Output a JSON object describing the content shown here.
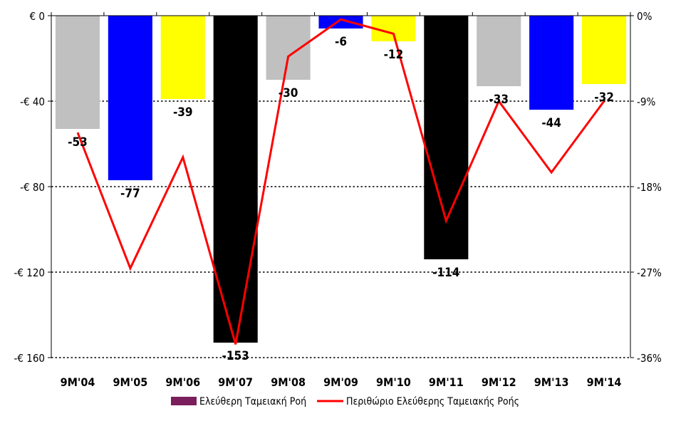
{
  "chart_data": {
    "type": "bar",
    "categories": [
      "9M'04",
      "9M'05",
      "9M'06",
      "9M'07",
      "9M'08",
      "9M'09",
      "9M'10",
      "9M'11",
      "9M'12",
      "9M'13",
      "9M'14"
    ],
    "series": [
      {
        "name": "Ελεύθερη Ταμειακή Ροή",
        "type": "bar",
        "axis": "left",
        "values": [
          -53,
          -77,
          -39,
          -153,
          -30,
          -6,
          -12,
          -114,
          -33,
          -44,
          -32
        ],
        "value_labels": [
          "-53",
          "-77",
          "-39",
          "-153",
          "-30",
          "-6",
          "-12",
          "-114",
          "-33",
          "-44",
          "-32"
        ],
        "bar_colors": [
          "#c0c0c0",
          "#0000ff",
          "#ffff00",
          "#000000",
          "#c0c0c0",
          "#0000ff",
          "#ffff00",
          "#000000",
          "#c0c0c0",
          "#0000ff",
          "#ffff00"
        ],
        "legend_color": "#7a1f5c"
      },
      {
        "name": "Περιθώριο Ελεύθερης Ταμειακής Ροής",
        "type": "line",
        "axis": "right",
        "color": "#ff0000",
        "values": [
          -12.3,
          -26.6,
          -14.9,
          -34.6,
          -4.3,
          -0.4,
          -1.9,
          -21.6,
          -9.0,
          -16.5,
          -9.0
        ]
      }
    ],
    "y_left": {
      "ylim": [
        -160,
        0
      ],
      "ticks": [
        0,
        -40,
        -80,
        -120,
        -160
      ],
      "tick_labels": [
        "€ 0",
        "-€ 40",
        "-€ 80",
        "-€ 120",
        "-€ 160"
      ]
    },
    "y_right": {
      "ylim": [
        -36,
        0
      ],
      "tick_labels": [
        "0%",
        "-9%",
        "-18%",
        "-27%",
        "-36%"
      ]
    },
    "grid": "dotted horizontal",
    "legend_position": "bottom"
  }
}
